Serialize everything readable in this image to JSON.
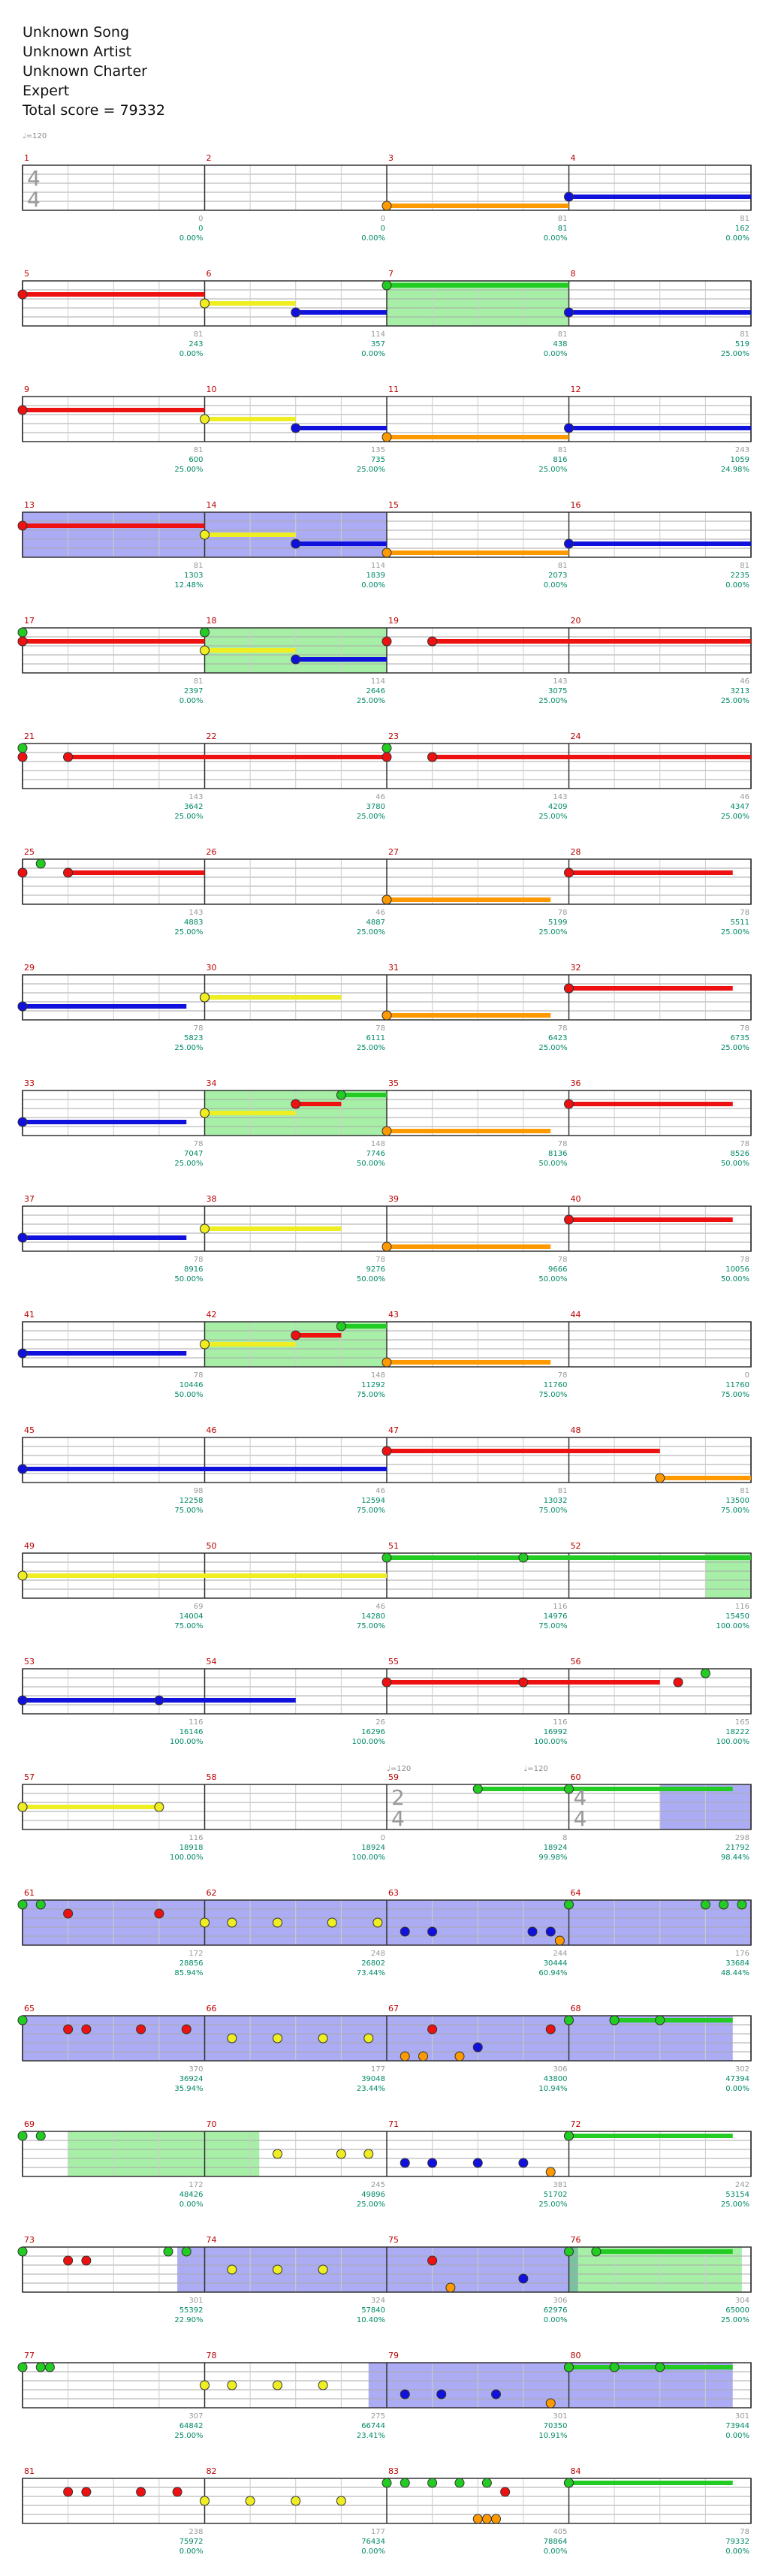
{
  "header": {
    "song": "Unknown Song",
    "artist": "Unknown Artist",
    "charter": "Unknown Charter",
    "difficulty": "Expert",
    "total_score": "Total score = 79332"
  },
  "tempo_marks": {
    "start": "♩=120",
    "m59": "♩=120",
    "m60": "♩=120"
  },
  "time_signatures": [
    {
      "measure": 1,
      "label": "4 4"
    },
    {
      "measure": 59,
      "label": "2 4"
    },
    {
      "measure": 60,
      "label": "4 4"
    }
  ],
  "colors": {
    "green": "#22cc22",
    "red": "#ee1111",
    "yellow": "#eeee22",
    "blue": "#1111dd",
    "orange": "#ff9900",
    "measure_number": "#bb0000",
    "stats": "#008866",
    "starpower": "#44dd44",
    "solo": "#7777ff"
  },
  "rows": [
    {
      "measures": [
        1,
        2,
        3,
        4
      ],
      "stats": [
        [
          "0",
          "0",
          "0.00%"
        ],
        [
          "0",
          "0",
          "0.00%"
        ],
        [
          "81",
          "81",
          "0.00%"
        ],
        [
          "81",
          "162",
          "0.00%"
        ]
      ]
    },
    {
      "measures": [
        5,
        6,
        7,
        8
      ],
      "stats": [
        [
          "81",
          "243",
          "0.00%"
        ],
        [
          "114",
          "357",
          "0.00%"
        ],
        [
          "81",
          "438",
          "0.00%"
        ],
        [
          "81",
          "519",
          "25.00%"
        ]
      ]
    },
    {
      "measures": [
        9,
        10,
        11,
        12
      ],
      "stats": [
        [
          "81",
          "600",
          "25.00%"
        ],
        [
          "135",
          "735",
          "25.00%"
        ],
        [
          "81",
          "816",
          "25.00%"
        ],
        [
          "243",
          "1059",
          "24.98%"
        ]
      ]
    },
    {
      "measures": [
        13,
        14,
        15,
        16
      ],
      "stats": [
        [
          "81",
          "1303",
          "12.48%"
        ],
        [
          "114",
          "1839",
          "0.00%"
        ],
        [
          "81",
          "2073",
          "0.00%"
        ],
        [
          "81",
          "2235",
          "0.00%"
        ]
      ]
    },
    {
      "measures": [
        17,
        18,
        19,
        20
      ],
      "stats": [
        [
          "81",
          "2397",
          "0.00%"
        ],
        [
          "114",
          "2646",
          "25.00%"
        ],
        [
          "143",
          "3075",
          "25.00%"
        ],
        [
          "46",
          "3213",
          "25.00%"
        ]
      ]
    },
    {
      "measures": [
        21,
        22,
        23,
        24
      ],
      "stats": [
        [
          "143",
          "3642",
          "25.00%"
        ],
        [
          "46",
          "3780",
          "25.00%"
        ],
        [
          "143",
          "4209",
          "25.00%"
        ],
        [
          "46",
          "4347",
          "25.00%"
        ]
      ]
    },
    {
      "measures": [
        25,
        26,
        27,
        28
      ],
      "stats": [
        [
          "143",
          "4883",
          "25.00%"
        ],
        [
          "46",
          "4887",
          "25.00%"
        ],
        [
          "78",
          "5199",
          "25.00%"
        ],
        [
          "78",
          "5511",
          "25.00%"
        ]
      ]
    },
    {
      "measures": [
        29,
        30,
        31,
        32
      ],
      "stats": [
        [
          "78",
          "5823",
          "25.00%"
        ],
        [
          "78",
          "6111",
          "25.00%"
        ],
        [
          "78",
          "6423",
          "25.00%"
        ],
        [
          "78",
          "6735",
          "25.00%"
        ]
      ]
    },
    {
      "measures": [
        33,
        34,
        35,
        36
      ],
      "stats": [
        [
          "78",
          "7047",
          "25.00%"
        ],
        [
          "148",
          "7746",
          "50.00%"
        ],
        [
          "78",
          "8136",
          "50.00%"
        ],
        [
          "78",
          "8526",
          "50.00%"
        ]
      ]
    },
    {
      "measures": [
        37,
        38,
        39,
        40
      ],
      "stats": [
        [
          "78",
          "8916",
          "50.00%"
        ],
        [
          "78",
          "9276",
          "50.00%"
        ],
        [
          "78",
          "9666",
          "50.00%"
        ],
        [
          "78",
          "10056",
          "50.00%"
        ]
      ]
    },
    {
      "measures": [
        41,
        42,
        43,
        44
      ],
      "stats": [
        [
          "78",
          "10446",
          "50.00%"
        ],
        [
          "148",
          "11292",
          "75.00%"
        ],
        [
          "78",
          "11760",
          "75.00%"
        ],
        [
          "0",
          "11760",
          "75.00%"
        ]
      ]
    },
    {
      "measures": [
        45,
        46,
        47,
        48
      ],
      "stats": [
        [
          "98",
          "12258",
          "75.00%"
        ],
        [
          "46",
          "12594",
          "75.00%"
        ],
        [
          "81",
          "13032",
          "75.00%"
        ],
        [
          "81",
          "13500",
          "75.00%"
        ]
      ]
    },
    {
      "measures": [
        49,
        50,
        51,
        52
      ],
      "stats": [
        [
          "69",
          "14004",
          "75.00%"
        ],
        [
          "46",
          "14280",
          "75.00%"
        ],
        [
          "116",
          "14976",
          "75.00%"
        ],
        [
          "116",
          "15450",
          "100.00%"
        ]
      ]
    },
    {
      "measures": [
        53,
        54,
        55,
        56
      ],
      "stats": [
        [
          "116",
          "16146",
          "100.00%"
        ],
        [
          "26",
          "16296",
          "100.00%"
        ],
        [
          "116",
          "16992",
          "100.00%"
        ],
        [
          "165",
          "18222",
          "100.00%"
        ]
      ]
    },
    {
      "measures": [
        57,
        58,
        59,
        60
      ],
      "stats": [
        [
          "116",
          "18918",
          "100.00%"
        ],
        [
          "0",
          "18924",
          "100.00%"
        ],
        [
          "8",
          "18924",
          "99.98%"
        ],
        [
          "298",
          "21792",
          "98.44%"
        ]
      ]
    },
    {
      "measures": [
        61,
        62,
        63,
        64
      ],
      "stats": [
        [
          "172",
          "28856",
          "85.94%"
        ],
        [
          "248",
          "26802",
          "73.44%"
        ],
        [
          "244",
          "30444",
          "60.94%"
        ],
        [
          "176",
          "33684",
          "48.44%"
        ]
      ]
    },
    {
      "measures": [
        65,
        66,
        67,
        68
      ],
      "stats": [
        [
          "370",
          "36924",
          "35.94%"
        ],
        [
          "177",
          "39048",
          "23.44%"
        ],
        [
          "306",
          "43800",
          "10.94%"
        ],
        [
          "302",
          "47394",
          "0.00%"
        ]
      ]
    },
    {
      "measures": [
        69,
        70,
        71,
        72
      ],
      "stats": [
        [
          "172",
          "48426",
          "0.00%"
        ],
        [
          "245",
          "49896",
          "25.00%"
        ],
        [
          "381",
          "51702",
          "25.00%"
        ],
        [
          "242",
          "53154",
          "25.00%"
        ]
      ]
    },
    {
      "measures": [
        73,
        74,
        75,
        76
      ],
      "stats": [
        [
          "301",
          "55392",
          "22.90%"
        ],
        [
          "324",
          "57840",
          "10.40%"
        ],
        [
          "306",
          "62976",
          "0.00%"
        ],
        [
          "304",
          "65000",
          "25.00%"
        ]
      ]
    },
    {
      "measures": [
        77,
        78,
        79,
        80
      ],
      "stats": [
        [
          "307",
          "64842",
          "25.00%"
        ],
        [
          "275",
          "66744",
          "23.41%"
        ],
        [
          "301",
          "70350",
          "10.91%"
        ],
        [
          "301",
          "73944",
          "0.00%"
        ]
      ]
    },
    {
      "measures": [
        81,
        82,
        83,
        84
      ],
      "stats": [
        [
          "238",
          "75972",
          "0.00%"
        ],
        [
          "177",
          "76434",
          "0.00%"
        ],
        [
          "405",
          "78864",
          "0.00%"
        ],
        [
          "78",
          "79332",
          "0.00%"
        ]
      ]
    }
  ]
}
